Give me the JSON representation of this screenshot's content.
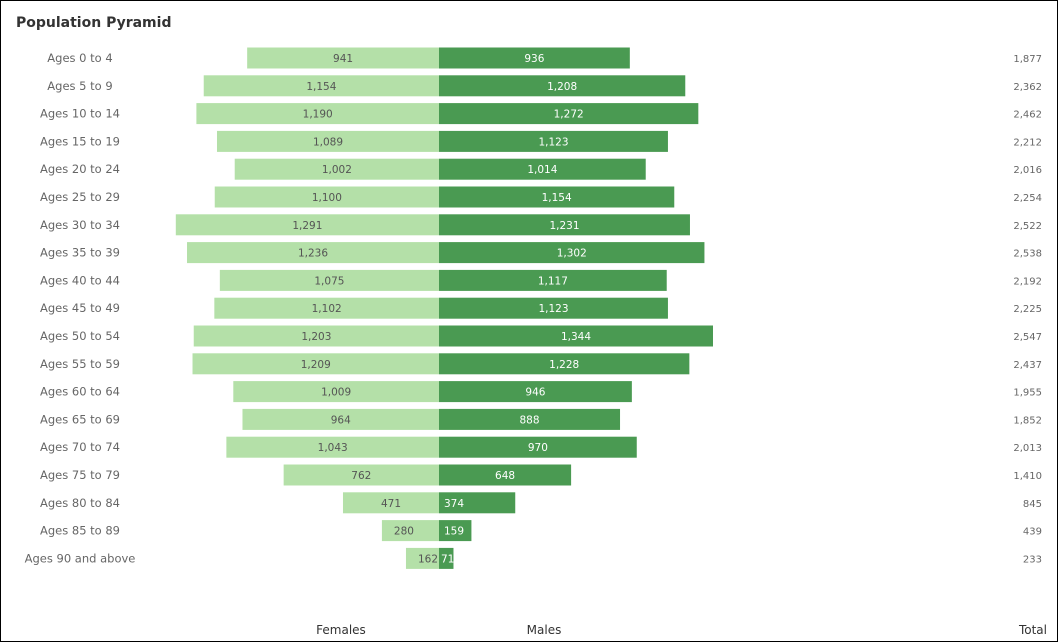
{
  "title": "Population Pyramid",
  "colors": {
    "females": "#b4e0a8",
    "males": "#4a9a52"
  },
  "chart_data": {
    "type": "bar",
    "orientation": "horizontal",
    "layout": "pyramid",
    "title": "Population Pyramid",
    "categories": [
      "Ages 0 to 4",
      "Ages 5 to 9",
      "Ages 10 to 14",
      "Ages 15 to 19",
      "Ages 20 to 24",
      "Ages 25 to 29",
      "Ages 30 to 34",
      "Ages 35 to 39",
      "Ages 40 to 44",
      "Ages 45 to 49",
      "Ages 50 to 54",
      "Ages 55 to 59",
      "Ages 60 to 64",
      "Ages 65 to 69",
      "Ages 70 to 74",
      "Ages 75 to 79",
      "Ages 80 to 84",
      "Ages 85 to 89",
      "Ages 90 and above"
    ],
    "series": [
      {
        "name": "Females",
        "values": [
          941,
          1154,
          1190,
          1089,
          1002,
          1100,
          1291,
          1236,
          1075,
          1102,
          1203,
          1209,
          1009,
          964,
          1043,
          762,
          471,
          280,
          162
        ],
        "labels": [
          "941",
          "1,154",
          "1,190",
          "1,089",
          "1,002",
          "1,100",
          "1,291",
          "1,236",
          "1,075",
          "1,102",
          "1,203",
          "1,209",
          "1,009",
          "964",
          "1,043",
          "762",
          "471",
          "280",
          "162"
        ]
      },
      {
        "name": "Males",
        "values": [
          936,
          1208,
          1272,
          1123,
          1014,
          1154,
          1231,
          1302,
          1117,
          1123,
          1344,
          1228,
          946,
          888,
          970,
          648,
          374,
          159,
          71
        ],
        "labels": [
          "936",
          "1,208",
          "1,272",
          "1,123",
          "1,014",
          "1,154",
          "1,231",
          "1,302",
          "1,117",
          "1,123",
          "1,344",
          "1,228",
          "946",
          "888",
          "970",
          "648",
          "374",
          "159",
          "71"
        ]
      }
    ],
    "totals": {
      "name": "Total",
      "labels": [
        "1,877",
        "2,362",
        "2,462",
        "2,212",
        "2,016",
        "2,254",
        "2,522",
        "2,538",
        "2,192",
        "2,225",
        "2,547",
        "2,437",
        "1,955",
        "1,852",
        "2,013",
        "1,410",
        "845",
        "439",
        "233"
      ]
    },
    "xlim": [
      0,
      1344
    ],
    "grid": false,
    "legend": "none"
  }
}
